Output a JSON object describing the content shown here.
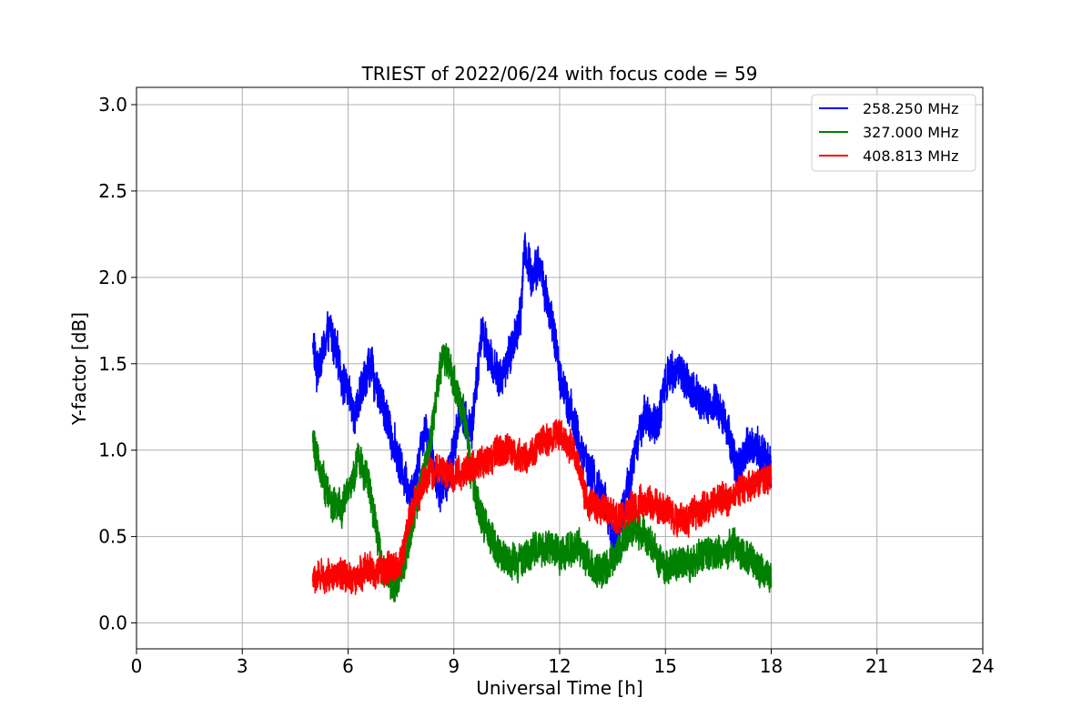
{
  "chart_data": {
    "type": "line",
    "title": "TRIEST of 2022/06/24 with focus code = 59",
    "xlabel": "Universal Time [h]",
    "ylabel": "Y-factor [dB]",
    "xlim": [
      0,
      24
    ],
    "ylim": [
      -0.15,
      3.1
    ],
    "xticks": [
      0,
      3,
      6,
      9,
      12,
      15,
      18,
      21,
      24
    ],
    "xtick_labels": [
      "0",
      "3",
      "6",
      "9",
      "12",
      "15",
      "18",
      "21",
      "24"
    ],
    "yticks": [
      0.0,
      0.5,
      1.0,
      1.5,
      2.0,
      2.5,
      3.0
    ],
    "ytick_labels": [
      "0.0",
      "0.5",
      "1.0",
      "1.5",
      "2.0",
      "2.5",
      "3.0"
    ],
    "grid": true,
    "legend_position": "top-right",
    "series": [
      {
        "name": "258.250 MHz",
        "color": "#0000ff",
        "noise": 0.14,
        "x": [
          5.0,
          5.1,
          5.5,
          5.8,
          6.2,
          6.6,
          7.0,
          7.5,
          7.8,
          8.2,
          8.6,
          8.9,
          9.2,
          9.5,
          9.8,
          10.0,
          10.3,
          10.6,
          10.9,
          11.0,
          11.2,
          11.4,
          11.6,
          11.8,
          12.0,
          12.3,
          12.6,
          13.0,
          13.3,
          13.5,
          13.8,
          14.1,
          14.4,
          14.8,
          15.0,
          15.3,
          15.6,
          15.9,
          16.2,
          16.5,
          16.8,
          17.0,
          17.3,
          17.6,
          17.8,
          18.0
        ],
        "y": [
          1.65,
          1.45,
          1.7,
          1.45,
          1.2,
          1.5,
          1.25,
          0.9,
          0.75,
          1.15,
          0.75,
          0.9,
          1.25,
          1.1,
          1.7,
          1.55,
          1.4,
          1.55,
          1.8,
          2.2,
          2.0,
          2.1,
          1.9,
          1.7,
          1.45,
          1.25,
          1.0,
          0.8,
          0.7,
          0.45,
          0.65,
          0.95,
          1.2,
          1.15,
          1.4,
          1.5,
          1.4,
          1.3,
          1.25,
          1.25,
          1.1,
          0.9,
          1.0,
          1.05,
          0.95,
          0.9
        ]
      },
      {
        "name": "327.000 MHz",
        "color": "#008000",
        "noise": 0.12,
        "x": [
          5.0,
          5.2,
          5.5,
          5.8,
          6.0,
          6.3,
          6.6,
          7.0,
          7.3,
          7.6,
          8.0,
          8.3,
          8.6,
          8.8,
          9.0,
          9.3,
          9.5,
          9.8,
          10.0,
          10.5,
          11.0,
          11.5,
          12.0,
          12.5,
          13.0,
          13.5,
          14.0,
          14.5,
          15.0,
          15.5,
          16.0,
          16.5,
          17.0,
          17.5,
          18.0
        ],
        "y": [
          1.05,
          0.9,
          0.7,
          0.65,
          0.75,
          0.95,
          0.8,
          0.3,
          0.2,
          0.35,
          0.75,
          1.0,
          1.45,
          1.55,
          1.4,
          1.2,
          0.85,
          0.6,
          0.5,
          0.35,
          0.38,
          0.45,
          0.4,
          0.45,
          0.3,
          0.35,
          0.55,
          0.5,
          0.3,
          0.35,
          0.38,
          0.4,
          0.45,
          0.35,
          0.25
        ]
      },
      {
        "name": "408.813 MHz",
        "color": "#ff0000",
        "noise": 0.11,
        "x": [
          5.0,
          5.5,
          6.0,
          6.5,
          7.0,
          7.5,
          7.8,
          8.2,
          8.6,
          9.0,
          9.5,
          10.0,
          10.5,
          11.0,
          11.5,
          12.0,
          12.4,
          12.8,
          13.2,
          13.6,
          14.0,
          14.5,
          15.0,
          15.5,
          16.0,
          16.5,
          17.0,
          17.5,
          18.0
        ],
        "y": [
          0.25,
          0.28,
          0.25,
          0.3,
          0.3,
          0.35,
          0.65,
          0.85,
          0.9,
          0.85,
          0.9,
          0.95,
          1.0,
          0.95,
          1.05,
          1.1,
          1.0,
          0.7,
          0.65,
          0.6,
          0.65,
          0.7,
          0.65,
          0.6,
          0.65,
          0.7,
          0.75,
          0.8,
          0.85
        ]
      }
    ]
  }
}
